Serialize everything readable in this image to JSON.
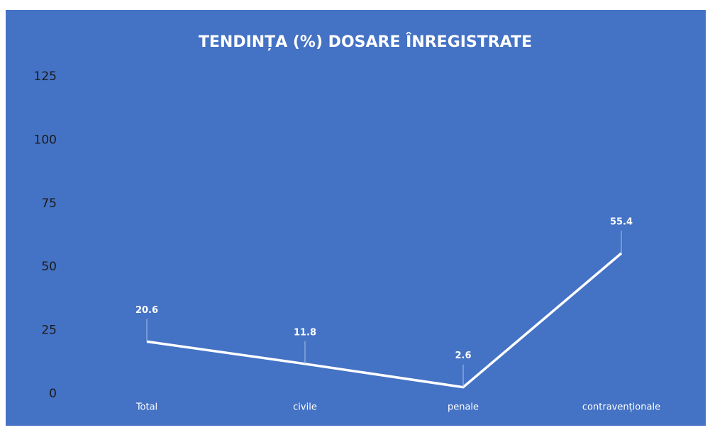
{
  "chart_data": {
    "type": "line",
    "title": "TENDINȚA (%) DOSARE ÎNREGISTRATE",
    "categories": [
      "Total",
      "civile",
      "penale",
      "contravenționale"
    ],
    "values": [
      20.6,
      11.8,
      2.6,
      55.4
    ],
    "color": "#ffffff",
    "ylim": [
      0,
      125
    ],
    "yticks": [
      0,
      25,
      50,
      75,
      100,
      125
    ],
    "grid": false
  }
}
